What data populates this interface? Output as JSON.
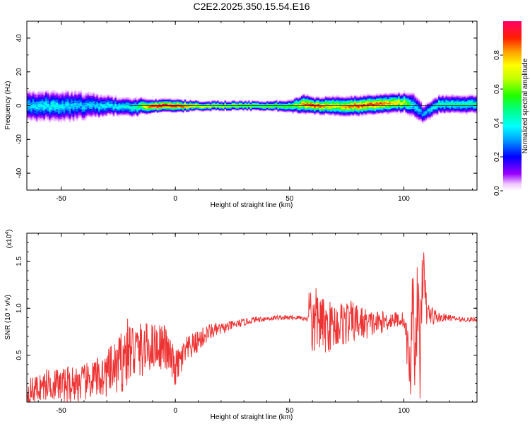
{
  "figure": {
    "title": "C2E2.2025.350.15.54.E16"
  },
  "chart_data": [
    {
      "type": "heatmap",
      "xlabel": "Height of straight line (km)",
      "ylabel": "Frequency (Hz)",
      "xlim": [
        -65,
        132
      ],
      "ylim": [
        -50,
        50
      ],
      "x_ticks": [
        -50,
        0,
        50,
        100
      ],
      "y_ticks": [
        -40,
        -20,
        0,
        20,
        40
      ],
      "colorbar": {
        "label": "Normalized spectral amplitude",
        "range": [
          0,
          1
        ],
        "ticks": [
          "0.0",
          "0.2",
          "0.4",
          "0.6",
          "0.8"
        ],
        "tick_values": [
          0,
          0.2,
          0.4,
          0.6,
          0.8
        ],
        "colormap": "rainbow"
      },
      "ridge": {
        "x": [
          -65,
          -55,
          -45,
          -35,
          -25,
          -18,
          -10,
          0,
          10,
          20,
          30,
          40,
          50,
          56,
          60,
          70,
          80,
          90,
          100,
          103,
          106,
          108,
          115,
          125,
          132
        ],
        "center_hz": [
          0,
          0,
          0,
          0,
          0,
          -1,
          0,
          0,
          0,
          0,
          0,
          0,
          0,
          1,
          0,
          0,
          0,
          1,
          2,
          1,
          -2,
          -5,
          1,
          1,
          1
        ],
        "half_width_hz": [
          5,
          5,
          5,
          4,
          3,
          3,
          2,
          2,
          1.5,
          1.5,
          1.5,
          1.5,
          2,
          3,
          2.5,
          3,
          3,
          3,
          3,
          4,
          4,
          3,
          3,
          3,
          3
        ],
        "peak_amplitude": [
          0.35,
          0.4,
          0.35,
          0.35,
          0.4,
          0.45,
          0.95,
          0.95,
          0.7,
          0.65,
          0.6,
          0.6,
          0.55,
          0.85,
          0.9,
          0.75,
          0.9,
          0.85,
          0.7,
          0.4,
          0.35,
          0.3,
          0.45,
          0.45,
          0.45
        ]
      }
    },
    {
      "type": "line",
      "xlabel": "Height of straight line (km)",
      "ylabel": "SNR (10 * v/v)",
      "y_multiplier_label": "(x10",
      "y_multiplier_exp": "4",
      "y_multiplier_close": ")",
      "xlim": [
        -65,
        132
      ],
      "ylim": [
        0,
        18000
      ],
      "x_ticks": [
        -50,
        0,
        50,
        100
      ],
      "y_ticks": [
        5000,
        10000,
        15000
      ],
      "y_tick_labels": [
        "0.5",
        "1.0",
        "1.5"
      ],
      "series": [
        {
          "color": "#ee3333",
          "x": [
            -65,
            -60,
            -55,
            -50,
            -45,
            -40,
            -35,
            -30,
            -25,
            -22,
            -20,
            -15,
            -10,
            -5,
            0,
            5,
            10,
            15,
            20,
            25,
            30,
            35,
            40,
            45,
            50,
            55,
            58,
            59,
            60,
            62,
            65,
            70,
            75,
            80,
            85,
            90,
            95,
            100,
            103,
            104,
            105,
            106,
            107,
            108,
            110,
            115,
            120,
            125,
            132
          ],
          "y": [
            1000,
            1500,
            2000,
            1800,
            2000,
            2000,
            2500,
            3000,
            3800,
            5000,
            5500,
            5500,
            6000,
            6000,
            3500,
            5500,
            6500,
            7500,
            7800,
            8200,
            8500,
            8800,
            8900,
            9000,
            9000,
            9000,
            8800,
            12000,
            7500,
            9000,
            8000,
            8200,
            8500,
            8500,
            8300,
            8500,
            8800,
            8800,
            3000,
            14000,
            2500,
            13000,
            2000,
            15000,
            9500,
            9000,
            9000,
            8800,
            8800
          ],
          "noise_amplitude": [
            1500,
            1500,
            1800,
            1800,
            2000,
            2000,
            2200,
            2500,
            3000,
            4000,
            3500,
            3000,
            2500,
            2500,
            2000,
            1500,
            1200,
            900,
            600,
            500,
            400,
            300,
            300,
            250,
            250,
            250,
            250,
            3500,
            4000,
            3500,
            3000,
            2500,
            2500,
            2000,
            1500,
            1200,
            900,
            800,
            4000,
            4000,
            4500,
            4500,
            4500,
            4000,
            1500,
            600,
            300,
            250,
            250
          ]
        }
      ]
    }
  ]
}
